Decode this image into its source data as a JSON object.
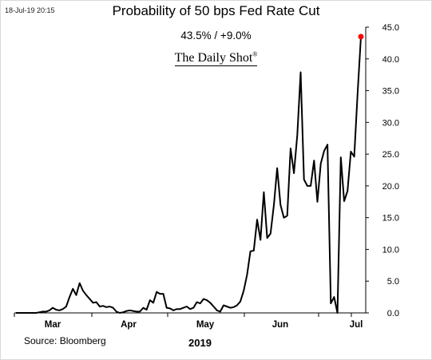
{
  "timestamp": "18-Jul-19 20:15",
  "source": "Source: Bloomberg",
  "brand": "The Daily Shot",
  "brand_mark": "®",
  "colors": {
    "line": "#000000",
    "last_point": "#ff0000",
    "axis": "#000000"
  },
  "chart_data": {
    "type": "line",
    "title": "Probability of 50 bps Fed Rate Cut",
    "subtitle": "43.5%  /  +9.0%",
    "xlabel": "2019",
    "ylabel": "",
    "y_axis_side": "right",
    "ylim": [
      0,
      45
    ],
    "y_ticks": [
      "0.0",
      "5.0",
      "10.0",
      "15.0",
      "20.0",
      "25.0",
      "30.0",
      "35.0",
      "40.0",
      "45.0"
    ],
    "month_labels": [
      "Mar",
      "Apr",
      "May",
      "Jun",
      "Jul"
    ],
    "grid": false,
    "last_point_marker": true,
    "series": [
      {
        "values": [
          0,
          0,
          0,
          0,
          0,
          0,
          0,
          0.1,
          0.2,
          0.2,
          0.4,
          0.8,
          0.5,
          0.4,
          0.6,
          1.0,
          2.5,
          3.8,
          2.8,
          4.7,
          3.5,
          2.8,
          2.2,
          1.6,
          1.7,
          1.0,
          1.1,
          0.9,
          1.0,
          0.8,
          0.2,
          0,
          0.1,
          0.3,
          0.4,
          0.3,
          0.2,
          0.2,
          0.8,
          0.5,
          2.0,
          1.6,
          3.3,
          3.0,
          3.0,
          0.8,
          0.7,
          0.4,
          0.6,
          0.6,
          0.8,
          1.0,
          0.6,
          0.8,
          1.7,
          1.5,
          2.2,
          2.0,
          1.6,
          1.0,
          0.4,
          0.2,
          1.2,
          1.0,
          0.8,
          0.9,
          1.2,
          1.8,
          3.5,
          6.0,
          9.7,
          9.8,
          14.7,
          11.5,
          19.0,
          11.8,
          12.5,
          17.0,
          22.8,
          17.0,
          15.0,
          15.3,
          25.9,
          22.0,
          28.0,
          37.9,
          21.0,
          20.0,
          20.0,
          24.0,
          17.5,
          23.5,
          25.5,
          26.5,
          1.5,
          2.5,
          0,
          24.5,
          17.6,
          19.2,
          25.4,
          24.6,
          34.5,
          43.5
        ]
      }
    ]
  }
}
